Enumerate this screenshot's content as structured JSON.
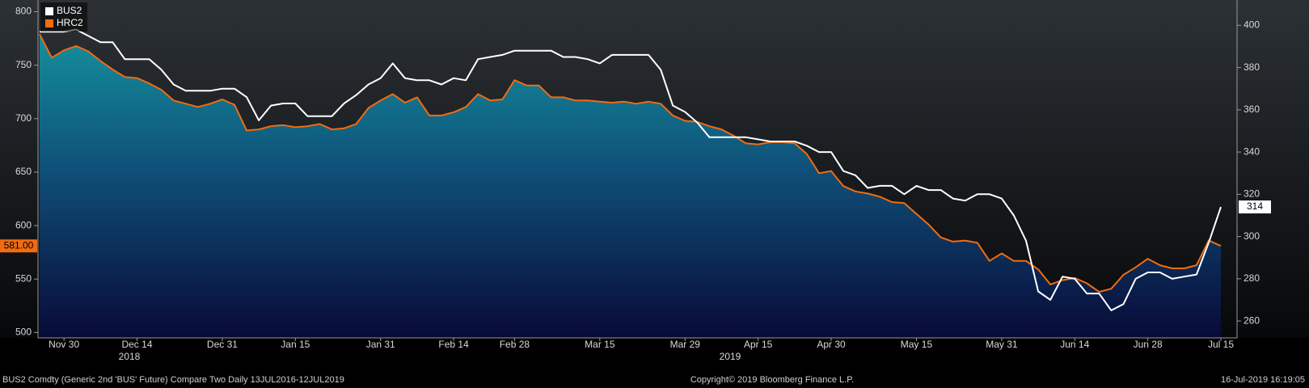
{
  "chart_data": {
    "type": "line",
    "legend": "upper left",
    "grid": false,
    "categories": [
      null,
      null,
      "Nov 30",
      null,
      null,
      null,
      null,
      null,
      "Dec 14",
      null,
      null,
      null,
      null,
      null,
      null,
      "Dec 31",
      null,
      null,
      null,
      null,
      null,
      "Jan 15",
      null,
      null,
      null,
      null,
      null,
      null,
      "Jan 31",
      null,
      null,
      null,
      null,
      null,
      "Feb 14",
      null,
      null,
      null,
      null,
      "Feb 28",
      null,
      null,
      null,
      null,
      null,
      null,
      "Mar 15",
      null,
      null,
      null,
      null,
      null,
      null,
      "Mar 29",
      null,
      null,
      null,
      null,
      null,
      "Apr 15",
      null,
      null,
      null,
      null,
      null,
      "Apr 30",
      null,
      null,
      null,
      null,
      null,
      null,
      "May 15",
      null,
      null,
      null,
      null,
      null,
      null,
      "May 31",
      null,
      null,
      null,
      null,
      null,
      "Jun 14",
      null,
      null,
      null,
      null,
      null,
      "Jun 28",
      null,
      null,
      null,
      null,
      null,
      "Jul 15"
    ],
    "year_labels": [
      "2018",
      "2019"
    ],
    "ylim": [
      495,
      811
    ],
    "yticks": [
      500,
      550,
      600,
      650,
      700,
      750,
      800
    ],
    "y2lim": [
      252,
      412
    ],
    "y2ticks": [
      260,
      280,
      300,
      320,
      340,
      360,
      380,
      400
    ],
    "series": [
      {
        "name": "BUS2",
        "color": "#ffffff",
        "axis": "y2",
        "values": [
          397,
          397,
          397,
          398,
          395,
          392,
          392,
          384,
          384,
          384,
          379,
          372,
          369,
          369,
          369,
          370,
          370,
          366,
          355,
          362,
          363,
          363,
          357,
          357,
          357,
          363,
          367,
          372,
          375,
          382,
          375,
          374,
          374,
          372,
          375,
          374,
          384,
          385,
          386,
          388,
          388,
          388,
          388,
          385,
          385,
          384,
          382,
          386,
          386,
          386,
          386,
          379,
          362,
          359,
          354,
          347,
          347,
          347,
          347,
          346,
          345,
          345,
          345,
          343,
          340,
          340,
          331,
          329,
          323,
          324,
          324,
          320,
          324,
          322,
          322,
          318,
          317,
          320,
          320,
          318,
          310,
          298,
          274,
          270,
          281,
          280,
          273,
          273,
          265,
          268,
          280,
          283,
          283,
          280,
          281,
          282,
          297,
          314
        ]
      },
      {
        "name": "HRC2",
        "color": "#f26b0f",
        "fill": true,
        "values": [
          779,
          757,
          764,
          768,
          763,
          754,
          746,
          739,
          738,
          733,
          727,
          717,
          714,
          711,
          714,
          718,
          713,
          689,
          690,
          693,
          694,
          692,
          693,
          695,
          690,
          691,
          695,
          710,
          717,
          723,
          715,
          720,
          703,
          703,
          706,
          711,
          723,
          717,
          718,
          736,
          731,
          731,
          720,
          720,
          717,
          717,
          716,
          715,
          716,
          714,
          716,
          714,
          703,
          698,
          697,
          693,
          690,
          684,
          677,
          676,
          678,
          678,
          677,
          667,
          649,
          651,
          637,
          632,
          630,
          627,
          622,
          621,
          611,
          601,
          589,
          585,
          586,
          584,
          567,
          574,
          567,
          567,
          559,
          545,
          549,
          551,
          546,
          538,
          541,
          554,
          561,
          569,
          563,
          560,
          560,
          563,
          586,
          581
        ],
        "last_value_label": "581.00"
      }
    ],
    "footer": {
      "left": "BUS2 Comdty (Generic 2nd 'BUS' Future) Compare Two  Daily 13JUL2016-12JUL2019",
      "center": "Copyright© 2019 Bloomberg Finance L.P.",
      "right": "16-Jul-2019 16:19:05"
    }
  }
}
